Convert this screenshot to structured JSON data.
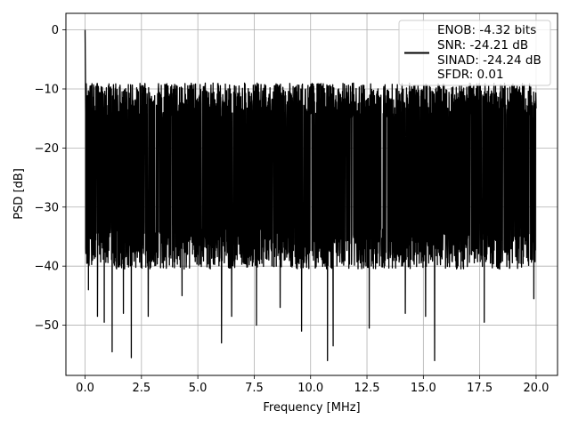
{
  "chart_data": {
    "type": "line",
    "title": "",
    "xlabel": "Frequency [MHz]",
    "ylabel": "PSD [dB]",
    "xlim": [
      -0.85,
      20.95
    ],
    "ylim": [
      -58.5,
      2.8
    ],
    "x_ticks": [
      0.0,
      2.5,
      5.0,
      7.5,
      10.0,
      12.5,
      15.0,
      17.5,
      20.0
    ],
    "x_tick_labels": [
      "0.0",
      "2.5",
      "5.0",
      "7.5",
      "10.0",
      "12.5",
      "15.0",
      "17.5",
      "20.0"
    ],
    "y_ticks": [
      0,
      -10,
      -20,
      -30,
      -40,
      -50
    ],
    "y_tick_labels": [
      "0",
      "−10",
      "−20",
      "−30",
      "−40",
      "−50"
    ],
    "grid": true,
    "legend_placement": "upper-right",
    "series": [
      {
        "name": "ENOB: -4.32 bits\nSNR: -24.21 dB\nSINAD: -24.24 dB\nSFDR: 0.01",
        "legend_lines": [
          "ENOB: -4.32 bits",
          "SNR: -24.21 dB",
          "SINAD: -24.24 dB",
          "SFDR: 0.01"
        ],
        "color": "#000000",
        "x_range": [
          0.0,
          20.0
        ],
        "noise_upper_envelope_db": -12,
        "noise_lower_envelope_db": -37,
        "peak_points": [
          {
            "x": 0.0,
            "y": 0.0
          },
          {
            "x": 0.03,
            "y": -14.0
          }
        ],
        "spikes_low": [
          {
            "x": 0.15,
            "y": -44.0
          },
          {
            "x": 0.55,
            "y": -48.5
          },
          {
            "x": 0.85,
            "y": -49.5
          },
          {
            "x": 1.2,
            "y": -54.5
          },
          {
            "x": 1.7,
            "y": -48.0
          },
          {
            "x": 2.05,
            "y": -55.5
          },
          {
            "x": 2.8,
            "y": -48.5
          },
          {
            "x": 4.3,
            "y": -45.0
          },
          {
            "x": 6.05,
            "y": -53.0
          },
          {
            "x": 6.5,
            "y": -48.5
          },
          {
            "x": 7.6,
            "y": -50.0
          },
          {
            "x": 8.65,
            "y": -47.0
          },
          {
            "x": 9.6,
            "y": -51.0
          },
          {
            "x": 10.75,
            "y": -56.0
          },
          {
            "x": 11.0,
            "y": -53.5
          },
          {
            "x": 12.6,
            "y": -50.5
          },
          {
            "x": 14.2,
            "y": -48.0
          },
          {
            "x": 15.1,
            "y": -48.5
          },
          {
            "x": 15.5,
            "y": -56.0
          },
          {
            "x": 17.7,
            "y": -49.5
          },
          {
            "x": 19.9,
            "y": -45.5
          }
        ],
        "spikes_high": [
          {
            "x": 0.5,
            "y": -15.0
          },
          {
            "x": 3.4,
            "y": -11.5
          },
          {
            "x": 5.4,
            "y": -10.5
          },
          {
            "x": 8.2,
            "y": -9.8
          },
          {
            "x": 10.8,
            "y": -9.5
          },
          {
            "x": 11.9,
            "y": -9.0
          },
          {
            "x": 14.5,
            "y": -10.0
          },
          {
            "x": 16.6,
            "y": -9.5
          },
          {
            "x": 17.4,
            "y": -10.2
          },
          {
            "x": 19.3,
            "y": -11.0
          }
        ]
      }
    ]
  }
}
